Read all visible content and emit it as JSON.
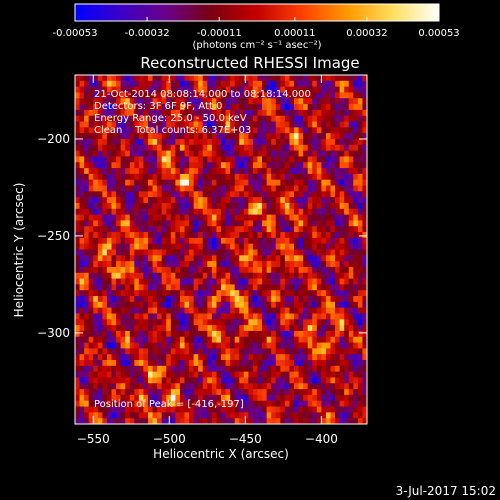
{
  "chart_data": {
    "type": "heatmap",
    "title": "Reconstructed RHESSI Image",
    "xlabel": "Heliocentric X (arcsec)",
    "ylabel": "Heliocentric Y (arcsec)",
    "xlim": [
      -562,
      -370
    ],
    "ylim": [
      -347,
      -167
    ],
    "xticks": [
      -550,
      -500,
      -450,
      -400
    ],
    "yticks": [
      -200,
      -250,
      -300
    ],
    "grid": false,
    "colorbar": {
      "position": "top",
      "range": [
        -0.00053,
        0.00053
      ],
      "tick_values": [
        -0.00053,
        -0.00032,
        -0.00011,
        0.00011,
        0.00032,
        0.00053
      ],
      "tick_labels": [
        "-0.00053",
        "-0.00032",
        "-0.00011",
        "0.00011",
        "0.00032",
        "0.00053"
      ],
      "units_label": "(photons cm⁻² s⁻¹ asec⁻²)",
      "colormap": [
        "#0000ff",
        "#3a00c8",
        "#6a0088",
        "#7a0010",
        "#c40000",
        "#ff4000",
        "#ff9a00",
        "#ffe060",
        "#ffffff"
      ]
    },
    "info_lines": [
      "21-Oct-2014 08:08:14.000 to 08:18:14.000",
      "Detectors: 3F 6F 9F, Att 0",
      "Energy Range: 25.0 - 50.0 keV",
      "Clean    Total counts: 6.37E+03"
    ],
    "peak_label": "Position of Peak = [-416,-197]",
    "peak": {
      "x": -416,
      "y": -197
    },
    "grid_size": [
      64,
      60
    ],
    "value_range": [
      -0.00053,
      0.00053
    ]
  },
  "footer": {
    "timestamp": "3-Jul-2017 15:02"
  }
}
